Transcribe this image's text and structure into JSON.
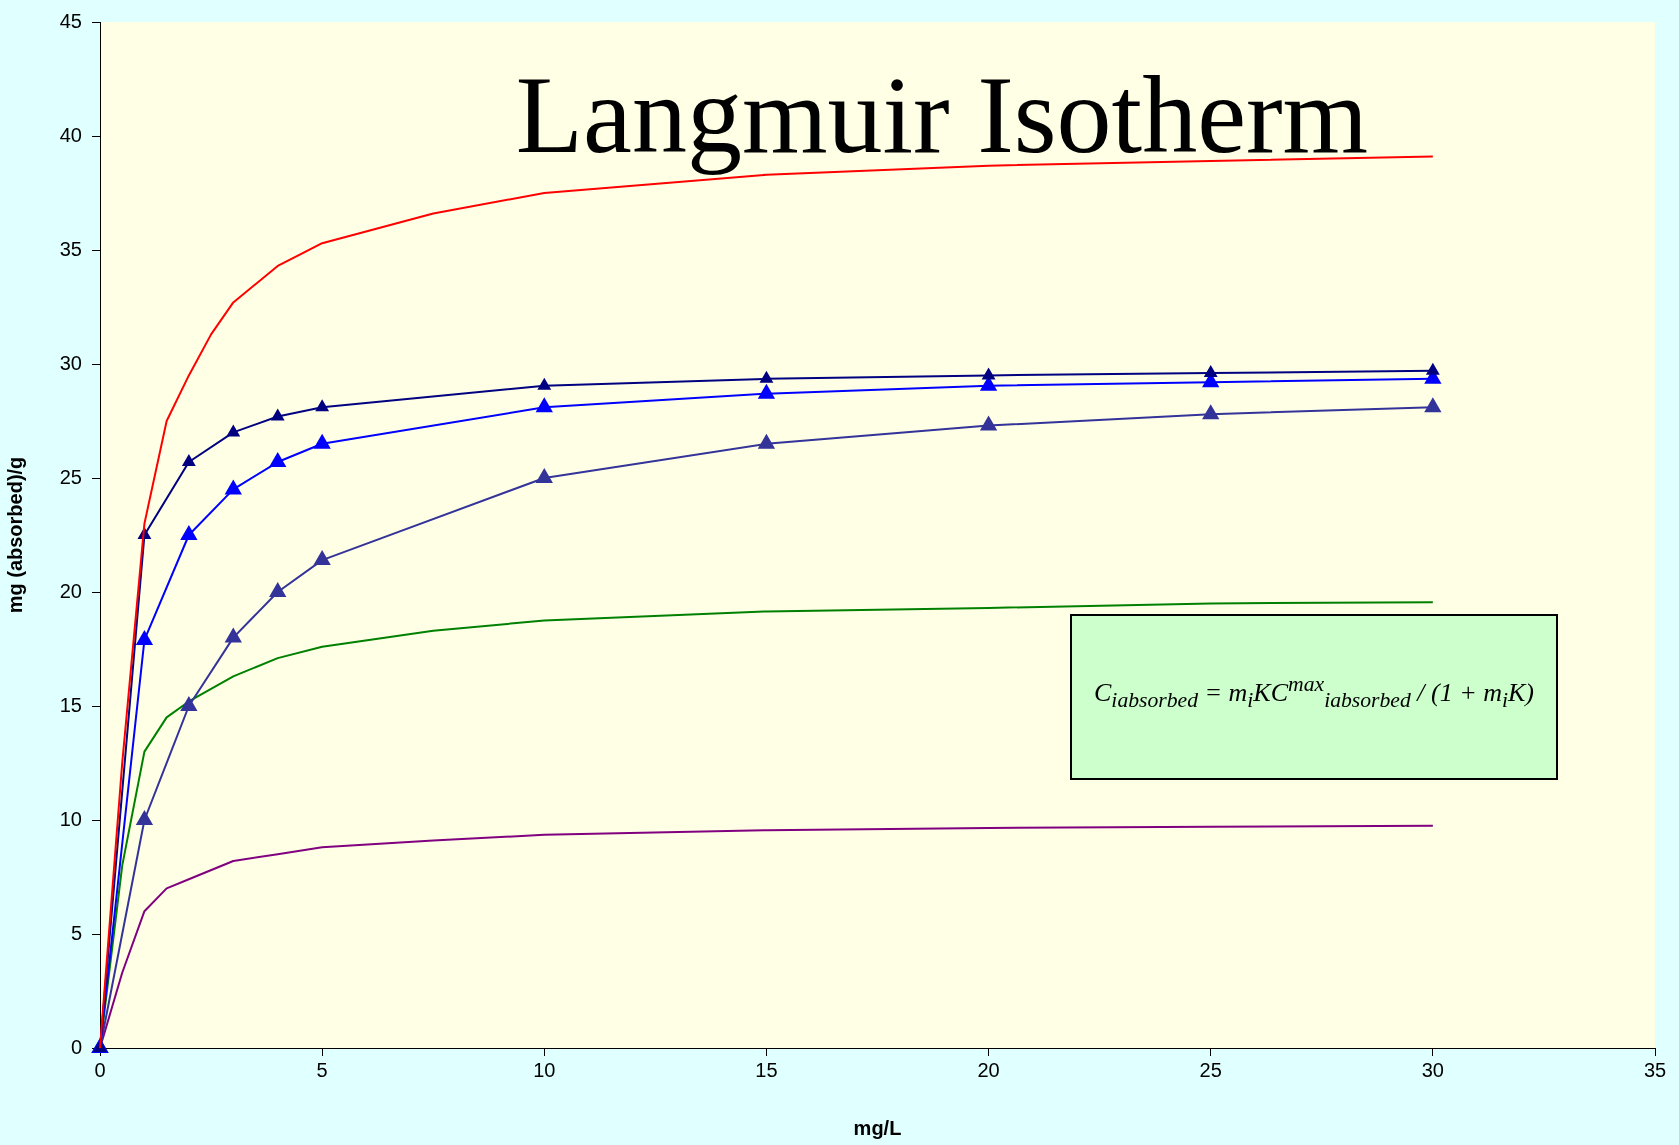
{
  "chart_data": {
    "type": "line",
    "title": "Langmuir Isotherm",
    "xlabel": "mg/L",
    "ylabel": "mg (absorbed)/g",
    "xlim": [
      0,
      35
    ],
    "xticks": [
      0,
      5,
      10,
      15,
      20,
      25,
      30,
      35
    ],
    "ylim": [
      0,
      45
    ],
    "yticks": [
      0,
      5,
      10,
      15,
      20,
      25,
      30,
      35,
      40,
      45
    ],
    "grid": false,
    "legend": false,
    "marker": "triangle",
    "line_style": "solid",
    "annotations": [
      "C$_{iabsorbed}$ = m$_{i}$KC$^{max}$$_{iabsorbed}$ / (1 + m$_{i}$K)"
    ],
    "series": [
      {
        "color": "#ff0000",
        "marker": "none",
        "x": [
          0,
          0.5,
          1,
          1.5,
          2,
          2.5,
          3,
          4,
          5,
          7.5,
          10,
          15,
          20,
          25,
          30
        ],
        "values": [
          0,
          12.5,
          23,
          27.5,
          29.5,
          31.3,
          32.7,
          34.3,
          35.3,
          36.6,
          37.5,
          38.3,
          38.7,
          38.9,
          39.1
        ]
      },
      {
        "color": "#000080",
        "x": [
          0,
          1,
          2,
          3,
          4,
          5,
          10,
          15,
          20,
          25,
          30
        ],
        "values": [
          0,
          22.5,
          25.7,
          27,
          27.7,
          28.1,
          29.05,
          29.35,
          29.5,
          29.6,
          29.7
        ]
      },
      {
        "color": "#0000ff",
        "x": [
          0,
          1,
          2,
          3,
          4,
          5,
          10,
          15,
          20,
          25,
          30
        ],
        "values": [
          0,
          17.9,
          22.5,
          24.5,
          25.7,
          26.5,
          28.1,
          28.7,
          29.05,
          29.2,
          29.35
        ]
      },
      {
        "color": "#333399",
        "x": [
          0,
          1,
          2,
          3,
          4,
          5,
          10,
          15,
          20,
          25,
          30
        ],
        "values": [
          0,
          10,
          15,
          18,
          20,
          21.4,
          25,
          26.5,
          27.3,
          27.8,
          28.1
        ]
      },
      {
        "color": "#008000",
        "marker": "none",
        "x": [
          0,
          0.5,
          1,
          1.5,
          2,
          3,
          4,
          5,
          7.5,
          10,
          15,
          20,
          25,
          30
        ],
        "values": [
          0,
          8,
          13,
          14.5,
          15.2,
          16.3,
          17.1,
          17.6,
          18.3,
          18.75,
          19.15,
          19.3,
          19.5,
          19.55
        ]
      },
      {
        "color": "#800080",
        "marker": "none",
        "x": [
          0,
          0.5,
          1,
          1.5,
          2,
          3,
          4,
          5,
          7.5,
          10,
          15,
          20,
          25,
          30
        ],
        "values": [
          0,
          3.3,
          6,
          7,
          7.4,
          8.2,
          8.5,
          8.8,
          9.1,
          9.35,
          9.55,
          9.65,
          9.7,
          9.75
        ]
      }
    ]
  }
}
